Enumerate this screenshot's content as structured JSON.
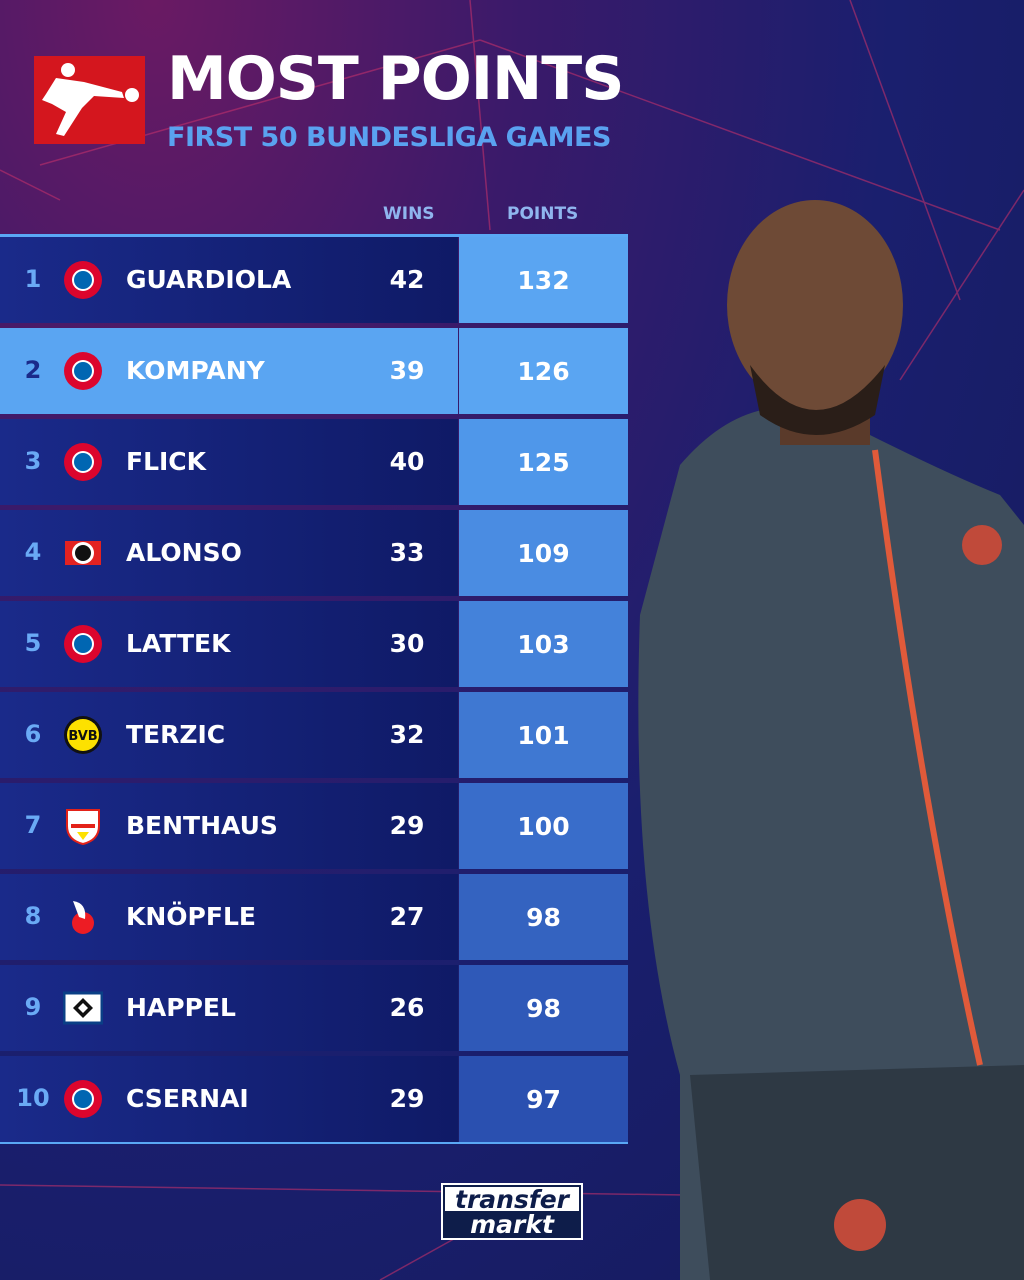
{
  "header": {
    "title": "MOST POINTS",
    "subtitle": "FIRST 50 BUNDESLIGA GAMES",
    "logo": "bundesliga-logo"
  },
  "columns": {
    "wins": "WINS",
    "points": "POINTS"
  },
  "rows": [
    {
      "rank": "1",
      "name": "GUARDIOLA",
      "wins": "42",
      "points": "132",
      "badge": "bayern-munich-badge",
      "color": "#5aa5f2",
      "highlight": false
    },
    {
      "rank": "2",
      "name": "KOMPANY",
      "wins": "39",
      "points": "126",
      "badge": "bayern-munich-badge",
      "color": "#5aa5f2",
      "highlight": true
    },
    {
      "rank": "3",
      "name": "FLICK",
      "wins": "40",
      "points": "125",
      "badge": "bayern-munich-badge",
      "color": "#4f97ea",
      "highlight": false
    },
    {
      "rank": "4",
      "name": "ALONSO",
      "wins": "33",
      "points": "109",
      "badge": "bayer-leverkusen-badge",
      "color": "#4a8ce2",
      "highlight": false
    },
    {
      "rank": "5",
      "name": "LATTEK",
      "wins": "30",
      "points": "103",
      "badge": "bayern-munich-badge",
      "color": "#4482da",
      "highlight": false
    },
    {
      "rank": "6",
      "name": "TERZIC",
      "wins": "32",
      "points": "101",
      "badge": "borussia-dortmund-badge",
      "color": "#3f78d2",
      "highlight": false
    },
    {
      "rank": "7",
      "name": "BENTHAUS",
      "wins": "29",
      "points": "100",
      "badge": "vfb-stuttgart-badge",
      "color": "#396dca",
      "highlight": false
    },
    {
      "rank": "8",
      "name": "KNÖPFLE",
      "wins": "27",
      "points": "98",
      "badge": "fc-koln-badge",
      "color": "#3463c0",
      "highlight": false
    },
    {
      "rank": "9",
      "name": "HAPPEL",
      "wins": "26",
      "points": "98",
      "badge": "hamburger-sv-badge",
      "color": "#2f59b8",
      "highlight": false
    },
    {
      "rank": "10",
      "name": "CSERNAI",
      "wins": "29",
      "points": "97",
      "badge": "bayern-munich-badge",
      "color": "#2a50b0",
      "highlight": false
    }
  ],
  "footer": {
    "logo_top": "transfer",
    "logo_bottom": "markt"
  }
}
